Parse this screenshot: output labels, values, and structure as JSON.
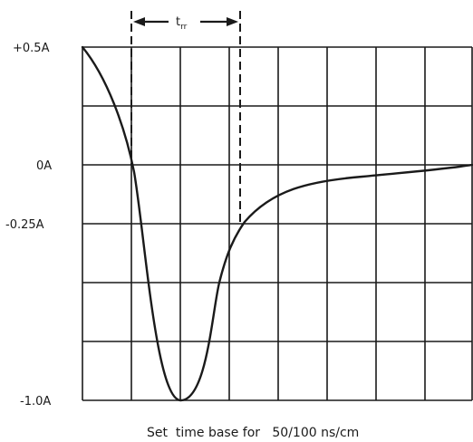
{
  "y_labels": {
    "top": "+0.5A",
    "zero": "0A",
    "quarter": "-0.25A",
    "bottom": "-1.0A"
  },
  "trr_label": {
    "main": "t",
    "sub": "rr"
  },
  "caption": "Set  time base for   50/100 ns/cm",
  "colors": {
    "line": "#1a1a1a",
    "background": "#ffffff"
  }
}
